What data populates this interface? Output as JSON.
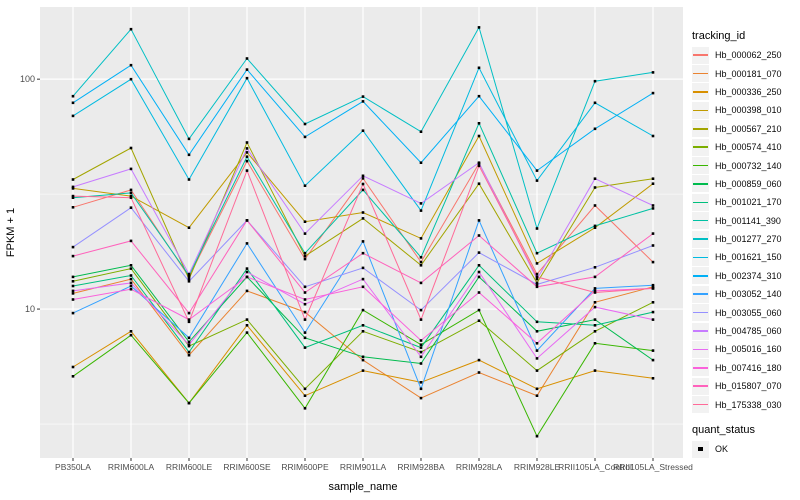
{
  "chart_data": {
    "type": "line",
    "title": "",
    "xlabel": "sample_name",
    "ylabel": "FPKM + 1",
    "yscale": "log10",
    "ylim": [
      2.25,
      206
    ],
    "yticks": [
      10,
      100
    ],
    "ytick_labels": [
      "10",
      "100"
    ],
    "yticks_minor": [
      3.162,
      31.62
    ],
    "grid": "on",
    "panel_bg": "#EBEBEB",
    "grid_color": "#FFFFFF",
    "point_color": "#000000",
    "axis_text_color": "#4D4D4D",
    "categories": [
      "PB350LA",
      "RRIM600LA",
      "RRIM600LE",
      "RRIM600SE",
      "RRIM600PE",
      "RRIM901LA",
      "RRIM928BA",
      "RRIM928LA",
      "RRIM928LE",
      "RRII105LA_Control",
      "RRII105LA_Stressed"
    ],
    "series": [
      {
        "name": "Hb_000062_250",
        "color": "#F8766D",
        "values": [
          27.7,
          33,
          13.8,
          44,
          16.5,
          37,
          16.0,
          43,
          14.2,
          28.2,
          16.0
        ]
      },
      {
        "name": "Hb_000181_070",
        "color": "#EA8331",
        "values": [
          11.7,
          13.5,
          6.3,
          12.0,
          9.7,
          6.0,
          4.1,
          5.3,
          4.2,
          10.7,
          12.5
        ]
      },
      {
        "name": "Hb_000336_250",
        "color": "#D89000",
        "values": [
          5.6,
          8.0,
          3.9,
          8.5,
          4.2,
          5.4,
          4.8,
          6.0,
          4.5,
          5.4,
          5.0
        ]
      },
      {
        "name": "Hb_000398_010",
        "color": "#C09B00",
        "values": [
          33.5,
          31,
          22.6,
          48,
          24,
          26.3,
          20.3,
          56.6,
          15.8,
          22.6,
          35.1
        ]
      },
      {
        "name": "Hb_000567_210",
        "color": "#A3A500",
        "values": [
          36.6,
          50.2,
          13.5,
          53,
          17.0,
          24.8,
          15.5,
          35.1,
          13.0,
          33.8,
          36.9
        ]
      },
      {
        "name": "Hb_000574_410",
        "color": "#7CAE00",
        "values": [
          13.2,
          15.0,
          6.9,
          9.0,
          4.5,
          8.0,
          6.5,
          8.9,
          5.4,
          8.0,
          10.7
        ]
      },
      {
        "name": "Hb_000732_140",
        "color": "#39B600",
        "values": [
          5.1,
          7.7,
          3.9,
          7.9,
          3.7,
          9.9,
          7.0,
          9.9,
          2.8,
          7.1,
          6.6
        ]
      },
      {
        "name": "Hb_000859_060",
        "color": "#00BB4E",
        "values": [
          13.8,
          15.5,
          7.2,
          13.8,
          7.5,
          6.2,
          5.8,
          13.8,
          8.0,
          9.0,
          6.0
        ]
      },
      {
        "name": "Hb_001021_170",
        "color": "#00BF7D",
        "values": [
          12.6,
          14.0,
          6.5,
          15.0,
          6.8,
          8.5,
          6.8,
          15.5,
          8.8,
          8.5,
          9.7
        ]
      },
      {
        "name": "Hb_001141_390",
        "color": "#00C1A3",
        "values": [
          30.5,
          32,
          14.0,
          46,
          17.5,
          33,
          16.8,
          64.3,
          17.5,
          23,
          27.4
        ]
      },
      {
        "name": "Hb_001277_270",
        "color": "#00BFC4",
        "values": [
          84.3,
          165,
          55,
          123,
          63.8,
          84,
          59.1,
          168,
          22.4,
          98,
          107
        ]
      },
      {
        "name": "Hb_001621_150",
        "color": "#00BAE0",
        "values": [
          69.2,
          100,
          36.6,
          101,
          34.4,
          59.7,
          26.8,
          112,
          36.2,
          78.9,
          56.6
        ]
      },
      {
        "name": "Hb_002374_310",
        "color": "#00B0F6",
        "values": [
          78.9,
          115,
          46.9,
          110,
          56.1,
          80,
          43.3,
          84.3,
          40,
          60.8,
          87
        ]
      },
      {
        "name": "Hb_003052_140",
        "color": "#35A2FF",
        "values": [
          9.6,
          12.6,
          7.5,
          19.3,
          7.9,
          19.7,
          4.5,
          24.3,
          6.6,
          12.3,
          12.7
        ]
      },
      {
        "name": "Hb_003055_060",
        "color": "#9590FF",
        "values": [
          18.6,
          27.6,
          13.2,
          24.3,
          12.5,
          15.1,
          9.9,
          17.6,
          12.8,
          15.2,
          18.9
        ]
      },
      {
        "name": "Hb_004785_060",
        "color": "#C77CFF",
        "values": [
          34.0,
          40.7,
          14.2,
          50,
          21.3,
          38,
          28.8,
          43.3,
          13.5,
          36.9,
          28.2
        ]
      },
      {
        "name": "Hb_005016_160",
        "color": "#E76BF3",
        "values": [
          12.0,
          13.0,
          7.0,
          14.5,
          10.5,
          13.5,
          6.2,
          14.5,
          6.1,
          10.2,
          9.0
        ]
      },
      {
        "name": "Hb_007416_180",
        "color": "#FA62DB",
        "values": [
          11.0,
          12.2,
          9.0,
          13.8,
          11.0,
          12.5,
          7.3,
          11.8,
          7.1,
          12.0,
          12.3
        ]
      },
      {
        "name": "Hb_015807_070",
        "color": "#FF62BC",
        "values": [
          17.0,
          19.8,
          9.6,
          24.3,
          11.8,
          17.5,
          13.0,
          20.9,
          12.5,
          13.8,
          21.3
        ]
      },
      {
        "name": "Hb_175338_030",
        "color": "#FF6A98",
        "values": [
          31,
          30.5,
          8.8,
          40,
          9.0,
          35,
          9.0,
          42,
          13.8,
          11.8,
          12.3
        ]
      }
    ],
    "legend": {
      "tracking_title": "tracking_id",
      "quant_title": "quant_status",
      "quant_items": [
        {
          "label": "OK",
          "marker": "black-square"
        }
      ],
      "position": "right",
      "key_bg": "#F2F2F2"
    }
  }
}
